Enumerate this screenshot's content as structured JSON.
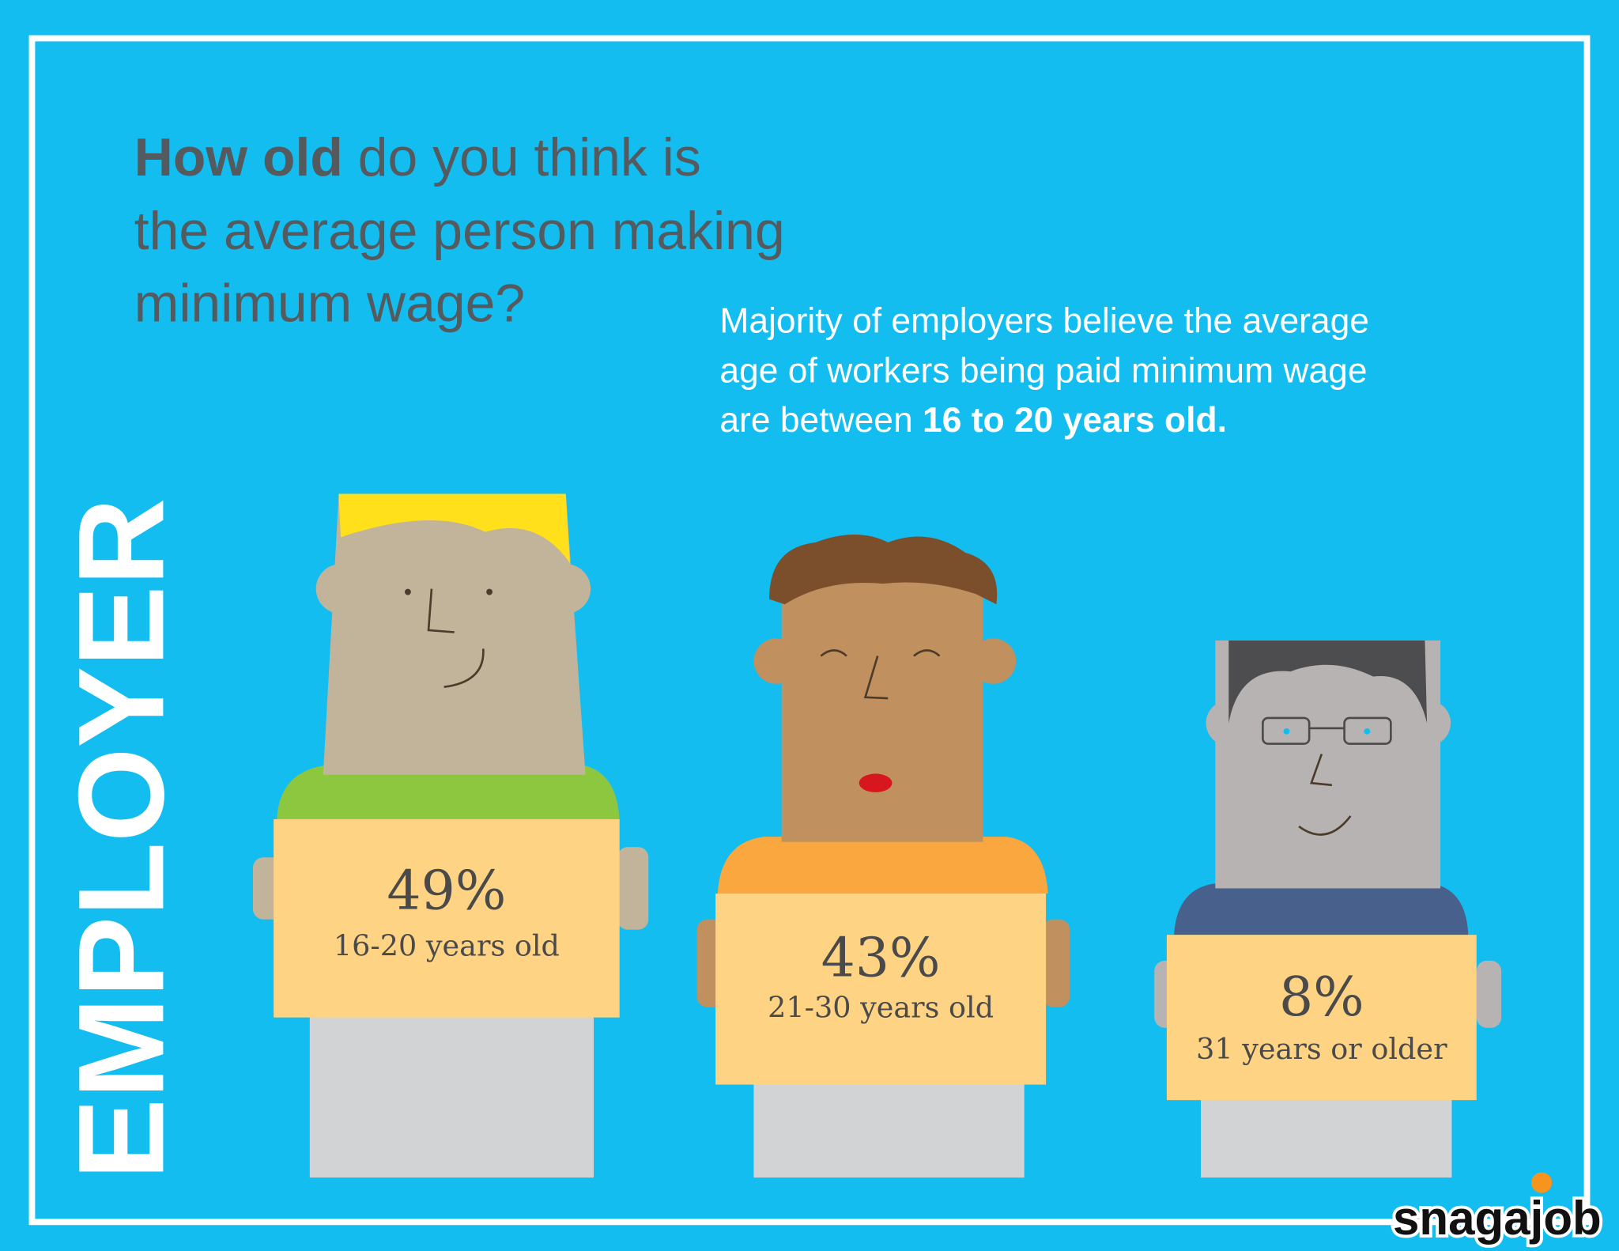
{
  "header": {
    "title": {
      "bold": "How old",
      "rest": " do you think is",
      "lines": [
        "the average person making",
        "minimum wage?"
      ]
    },
    "subtitle": {
      "lines": [
        "Majority of employers believe the average",
        "age of workers being paid minimum wage",
        "are between "
      ],
      "bold": "16 to 20 years old."
    }
  },
  "side_label": "EMPLOYER",
  "cards": [
    {
      "percent": "49%",
      "label": "16-20 years old"
    },
    {
      "percent": "43%",
      "label": "21-30 years old"
    },
    {
      "percent": "8%",
      "label": "31 years or older"
    }
  ],
  "logo": "snagajob"
}
